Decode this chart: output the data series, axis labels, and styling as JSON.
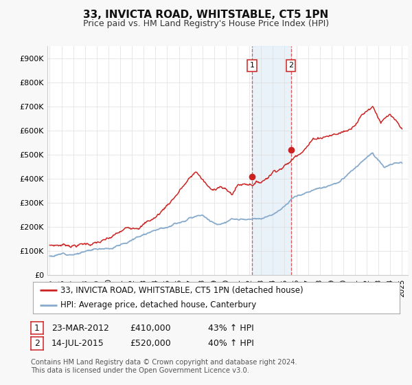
{
  "title": "33, INVICTA ROAD, WHITSTABLE, CT5 1PN",
  "subtitle": "Price paid vs. HM Land Registry's House Price Index (HPI)",
  "background_color": "#f8f8f8",
  "plot_bg_color": "#ffffff",
  "red_line_color": "#cc2222",
  "blue_line_color": "#88aacc",
  "sale1_date_num": 2012.22,
  "sale1_price": 410000,
  "sale1_label": "1",
  "sale2_date_num": 2015.53,
  "sale2_price": 520000,
  "sale2_label": "2",
  "shade_color": "#c8dff0",
  "shade_alpha": 0.4,
  "ylim": [
    0,
    950000
  ],
  "yticks": [
    0,
    100000,
    200000,
    300000,
    400000,
    500000,
    600000,
    700000,
    800000,
    900000
  ],
  "ytick_labels": [
    "£0",
    "£100K",
    "£200K",
    "£300K",
    "£400K",
    "£500K",
    "£600K",
    "£700K",
    "£800K",
    "£900K"
  ],
  "xmin": 1994.8,
  "xmax": 2025.5,
  "legend_line1": "33, INVICTA ROAD, WHITSTABLE, CT5 1PN (detached house)",
  "legend_line2": "HPI: Average price, detached house, Canterbury",
  "table_row1": [
    "1",
    "23-MAR-2012",
    "£410,000",
    "43% ↑ HPI"
  ],
  "table_row2": [
    "2",
    "14-JUL-2015",
    "£520,000",
    "40% ↑ HPI"
  ],
  "footer": "Contains HM Land Registry data © Crown copyright and database right 2024.\nThis data is licensed under the Open Government Licence v3.0."
}
